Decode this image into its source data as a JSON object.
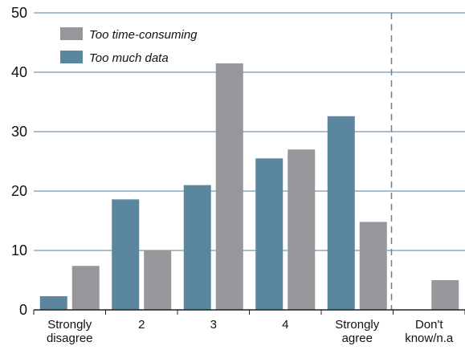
{
  "chart_data": {
    "type": "bar",
    "title": "",
    "xlabel": "",
    "ylabel": "",
    "ylim": [
      0,
      50
    ],
    "yticks": [
      "0",
      "10",
      "20",
      "30",
      "40",
      "50"
    ],
    "grid": true,
    "legend_position": "top-left",
    "categories": [
      [
        "Strongly",
        "disagree"
      ],
      [
        "2"
      ],
      [
        "3"
      ],
      [
        "4"
      ],
      [
        "Strongly",
        "agree"
      ],
      [
        "Don't",
        "know/n.a"
      ]
    ],
    "series": [
      {
        "name": "Too much data",
        "color": "#5b86a0",
        "values": [
          2.3,
          18.6,
          21.0,
          25.5,
          32.6,
          0
        ]
      },
      {
        "name": "Too time-consuming",
        "color": "#97979b",
        "values": [
          7.4,
          10.0,
          41.5,
          27.0,
          14.8,
          5.0
        ]
      }
    ],
    "legend_order": [
      "Too time-consuming",
      "Too much data"
    ],
    "separator_before_last_category": true,
    "colors": {
      "grid": "#4f7f99",
      "axis": "#222222",
      "separator": "#5b86a0"
    }
  }
}
